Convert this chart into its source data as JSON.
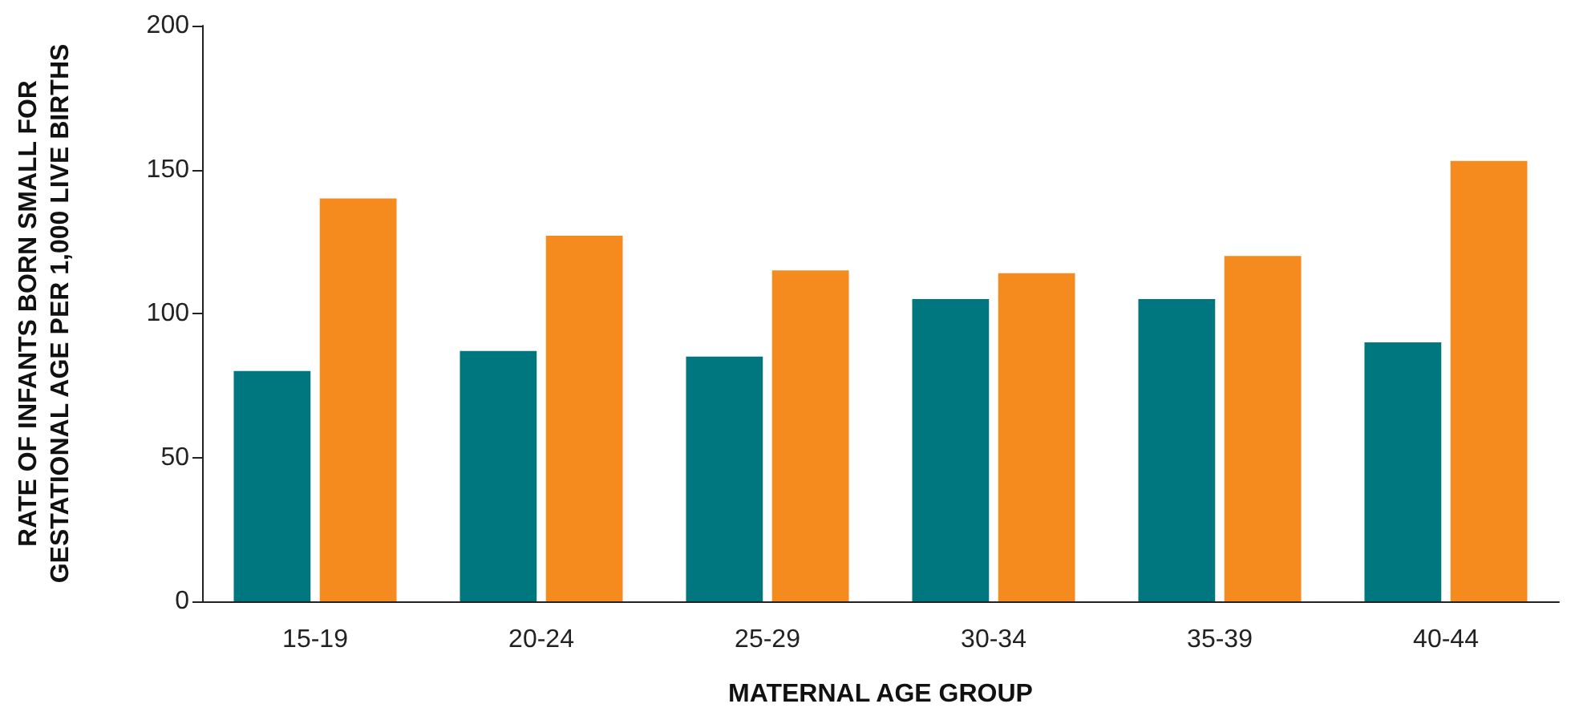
{
  "chart_data": {
    "type": "bar",
    "xlabel": "MATERNAL AGE GROUP",
    "ylabel": "RATE OF INFANTS BORN SMALL FOR\nGESTATIONAL AGE PER 1,000 LIVE BIRTHS",
    "categories": [
      "15-19",
      "20-24",
      "25-29",
      "30-34",
      "35-39",
      "40-44"
    ],
    "series": [
      {
        "color": "#00767f",
        "values": [
          80,
          87,
          85,
          105,
          105,
          90
        ]
      },
      {
        "color": "#f58a1f",
        "values": [
          140,
          127,
          115,
          114,
          120,
          153
        ]
      }
    ],
    "ylim": [
      0,
      200
    ],
    "yticks": [
      0,
      50,
      100,
      150,
      200
    ],
    "grid": false
  }
}
